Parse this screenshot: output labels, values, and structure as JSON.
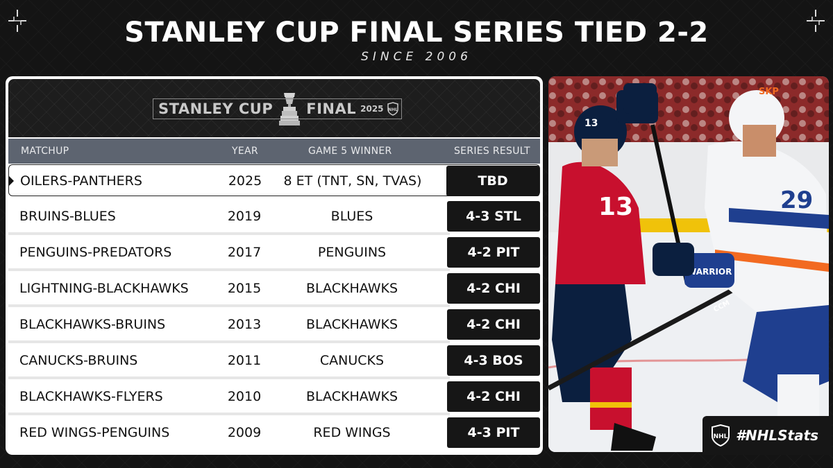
{
  "header": {
    "title": "STANLEY CUP FINAL SERIES TIED 2-2",
    "subtitle": "SINCE 2006"
  },
  "logo": {
    "left_text": "STANLEY CUP",
    "right_text": "FINAL",
    "year": "2025",
    "cup_icon": "stanley-cup-icon",
    "league_icon": "nhl-shield-icon"
  },
  "table": {
    "columns": {
      "matchup": "MATCHUP",
      "year": "YEAR",
      "winner": "GAME 5 WINNER",
      "result": "SERIES RESULT"
    },
    "rows": [
      {
        "matchup": "OILERS-PANTHERS",
        "year": "2025",
        "winner": "8 ET (TNT, SN, TVAS)",
        "result": "TBD"
      },
      {
        "matchup": "BRUINS-BLUES",
        "year": "2019",
        "winner": "BLUES",
        "result": "4-3 STL"
      },
      {
        "matchup": "PENGUINS-PREDATORS",
        "year": "2017",
        "winner": "PENGUINS",
        "result": "4-2 PIT"
      },
      {
        "matchup": "LIGHTNING-BLACKHAWKS",
        "year": "2015",
        "winner": "BLACKHAWKS",
        "result": "4-2 CHI"
      },
      {
        "matchup": "BLACKHAWKS-BRUINS",
        "year": "2013",
        "winner": "BLACKHAWKS",
        "result": "4-2 CHI"
      },
      {
        "matchup": "CANUCKS-BRUINS",
        "year": "2011",
        "winner": "CANUCKS",
        "result": "4-3 BOS"
      },
      {
        "matchup": "BLACKHAWKS-FLYERS",
        "year": "2010",
        "winner": "BLACKHAWKS",
        "result": "4-2 CHI"
      },
      {
        "matchup": "RED WINGS-PENGUINS",
        "year": "2009",
        "winner": "RED WINGS",
        "result": "4-3 PIT"
      }
    ]
  },
  "photo": {
    "left_player_number": "13",
    "right_player_number": "29",
    "left_stick_text": "CCM",
    "glove_text": "WARRIOR",
    "helmet_text": "SKP"
  },
  "footer": {
    "hashtag": "#NHLStats",
    "league_icon": "nhl-shield-icon"
  },
  "colors": {
    "background": "#141414",
    "result_cell": "#161616",
    "column_header": "#5d6470",
    "panthers_red": "#c8102e",
    "oilers_blue": "#1f3f8f",
    "oilers_orange": "#f26a21"
  }
}
